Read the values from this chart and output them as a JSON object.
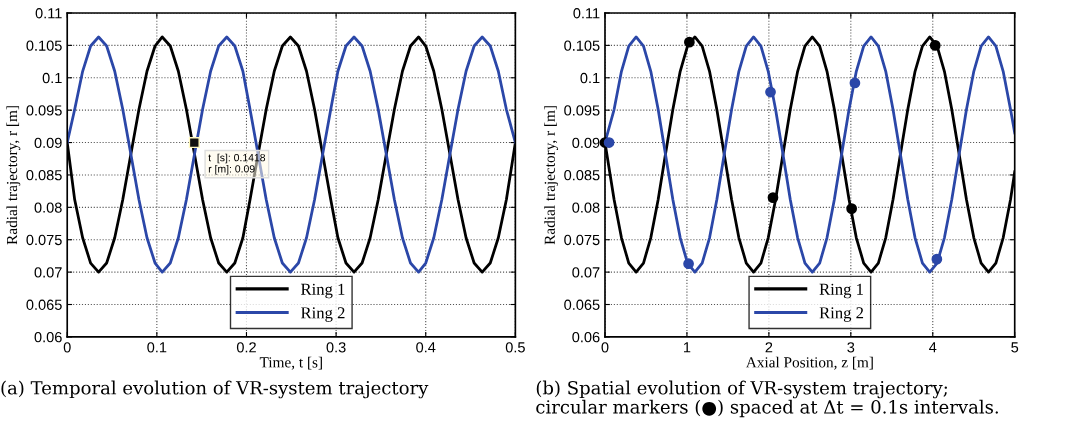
{
  "chart_data": [
    {
      "type": "line",
      "xlabel": "Time, t [s]",
      "ylabel": "Radial trajectory, r [m]",
      "xlim": [
        0,
        0.5
      ],
      "ylim": [
        0.06,
        0.11
      ],
      "xticks": [
        0,
        0.1,
        0.2,
        0.3,
        0.4,
        0.5
      ],
      "yticks": [
        0.06,
        0.065,
        0.07,
        0.075,
        0.08,
        0.085,
        0.09,
        0.095,
        0.1,
        0.105,
        0.11
      ],
      "grid": true,
      "legend": "bottom",
      "marker": "none",
      "line_style": "solid",
      "x": [
        0,
        0.0083,
        0.0172,
        0.0261,
        0.035,
        0.044,
        0.053,
        0.062,
        0.071,
        0.08,
        0.089,
        0.098,
        0.106,
        0.115,
        0.124,
        0.133,
        0.142,
        0.151,
        0.16,
        0.169,
        0.178,
        0.187,
        0.196,
        0.204,
        0.213,
        0.222,
        0.231,
        0.24,
        0.249,
        0.258,
        0.267,
        0.276,
        0.285,
        0.294,
        0.302,
        0.311,
        0.32,
        0.329,
        0.338,
        0.347,
        0.356,
        0.365,
        0.374,
        0.383,
        0.392,
        0.4,
        0.409,
        0.418,
        0.427,
        0.436,
        0.445,
        0.454,
        0.463,
        0.472,
        0.481,
        0.49,
        0.5
      ],
      "series": [
        {
          "name": "Ring 1",
          "color": "#000000",
          "values": [
            0.09,
            0.0812,
            0.0753,
            0.0714,
            0.07,
            0.0714,
            0.0753,
            0.0812,
            0.0882,
            0.0951,
            0.101,
            0.1049,
            0.1063,
            0.1049,
            0.101,
            0.0951,
            0.0882,
            0.0812,
            0.0753,
            0.0714,
            0.07,
            0.0714,
            0.0753,
            0.0812,
            0.0882,
            0.0951,
            0.101,
            0.1049,
            0.1063,
            0.1049,
            0.101,
            0.0951,
            0.0882,
            0.0812,
            0.0753,
            0.0714,
            0.07,
            0.0714,
            0.0753,
            0.0812,
            0.0882,
            0.0951,
            0.101,
            0.1049,
            0.1063,
            0.1049,
            0.101,
            0.0951,
            0.0882,
            0.0812,
            0.0753,
            0.0714,
            0.07,
            0.0714,
            0.0753,
            0.0812,
            0.09
          ]
        },
        {
          "name": "Ring 2",
          "color": "#2b47a8",
          "values": [
            0.09,
            0.0951,
            0.101,
            0.1049,
            0.1063,
            0.1049,
            0.101,
            0.0951,
            0.0882,
            0.0812,
            0.0753,
            0.0714,
            0.07,
            0.0714,
            0.0753,
            0.0812,
            0.0882,
            0.0951,
            0.101,
            0.1049,
            0.1063,
            0.1049,
            0.101,
            0.0951,
            0.0882,
            0.0812,
            0.0753,
            0.0714,
            0.07,
            0.0714,
            0.0753,
            0.0812,
            0.0882,
            0.0951,
            0.101,
            0.1049,
            0.1063,
            0.1049,
            0.101,
            0.0951,
            0.0882,
            0.0812,
            0.0753,
            0.0714,
            0.07,
            0.0714,
            0.0753,
            0.0812,
            0.0882,
            0.0951,
            0.101,
            0.1049,
            0.1063,
            0.1049,
            0.101,
            0.0951,
            0.09
          ]
        }
      ],
      "annotations": [
        {
          "text": "t  [s]: 0.1418\nr [m]: 0.09",
          "x": 0.1418,
          "y": 0.09
        },
        "(a) Temporal evolution of VR-system trajectory"
      ]
    },
    {
      "type": "line",
      "xlabel": "Axial Position, z [m]",
      "ylabel": "Radial trajectory, r [m]",
      "xlim": [
        0,
        5
      ],
      "ylim": [
        0.06,
        0.11
      ],
      "xticks": [
        0,
        1,
        2,
        3,
        4,
        5
      ],
      "yticks": [
        0.06,
        0.065,
        0.07,
        0.075,
        0.08,
        0.085,
        0.09,
        0.095,
        0.1,
        0.105,
        0.11
      ],
      "grid": true,
      "legend": "bottom",
      "marker": "none",
      "line_style": "solid",
      "x": [
        0,
        0.111,
        0.201,
        0.29,
        0.38,
        0.47,
        0.559,
        0.649,
        0.738,
        0.828,
        0.918,
        1.007,
        1.097,
        1.186,
        1.276,
        1.365,
        1.455,
        1.545,
        1.634,
        1.724,
        1.813,
        1.903,
        1.992,
        2.082,
        2.172,
        2.261,
        2.351,
        2.44,
        2.53,
        2.62,
        2.709,
        2.799,
        2.888,
        2.978,
        3.067,
        3.157,
        3.247,
        3.336,
        3.426,
        3.515,
        3.605,
        3.695,
        3.784,
        3.874,
        3.963,
        4.053,
        4.142,
        4.232,
        4.322,
        4.411,
        4.501,
        4.59,
        4.68,
        4.77,
        4.859,
        4.949,
        5.0
      ],
      "series": [
        {
          "name": "Ring 1",
          "color": "#000000",
          "values": [
            0.09,
            0.0812,
            0.0753,
            0.0714,
            0.07,
            0.0714,
            0.0753,
            0.0812,
            0.0882,
            0.0951,
            0.101,
            0.1049,
            0.1063,
            0.1049,
            0.101,
            0.0951,
            0.0882,
            0.0812,
            0.0753,
            0.0714,
            0.07,
            0.0714,
            0.0753,
            0.0812,
            0.0882,
            0.0951,
            0.101,
            0.1049,
            0.1063,
            0.1049,
            0.101,
            0.0951,
            0.0882,
            0.0812,
            0.0753,
            0.0714,
            0.07,
            0.0714,
            0.0753,
            0.0812,
            0.0882,
            0.0951,
            0.101,
            0.1049,
            0.1063,
            0.1049,
            0.101,
            0.0951,
            0.0882,
            0.0812,
            0.0753,
            0.0714,
            0.07,
            0.0714,
            0.0753,
            0.0812,
            0.0855
          ]
        },
        {
          "name": "Ring 2",
          "color": "#2b47a8",
          "values": [
            0.09,
            0.0951,
            0.101,
            0.1049,
            0.1063,
            0.1049,
            0.101,
            0.0951,
            0.0882,
            0.0812,
            0.0753,
            0.0714,
            0.07,
            0.0714,
            0.0753,
            0.0812,
            0.0882,
            0.0951,
            0.101,
            0.1049,
            0.1063,
            0.1049,
            0.101,
            0.0951,
            0.0882,
            0.0812,
            0.0753,
            0.0714,
            0.07,
            0.0714,
            0.0753,
            0.0812,
            0.0882,
            0.0951,
            0.101,
            0.1049,
            0.1063,
            0.1049,
            0.101,
            0.0951,
            0.0882,
            0.0812,
            0.0753,
            0.0714,
            0.07,
            0.0714,
            0.0753,
            0.0812,
            0.0882,
            0.0951,
            0.101,
            0.1049,
            0.1063,
            0.1049,
            0.101,
            0.0951,
            0.0915
          ]
        },
        {
          "type": "scatter",
          "color": "#000000",
          "marker": "circle",
          "x": [
            0,
            1.03,
            2.05,
            3.01,
            4.03
          ],
          "values": [
            0.09,
            0.1055,
            0.0815,
            0.0798,
            0.105
          ]
        },
        {
          "type": "scatter",
          "color": "#2b47a8",
          "marker": "circle",
          "x": [
            0.05,
            1.02,
            2.02,
            3.05,
            4.05
          ],
          "values": [
            0.09,
            0.0713,
            0.0978,
            0.0992,
            0.072
          ]
        }
      ],
      "annotations": [
        "(b) Spatial evolution of VR-system trajectory;\ncircular markers (●) spaced at Δt = 0.1s intervals."
      ]
    }
  ]
}
